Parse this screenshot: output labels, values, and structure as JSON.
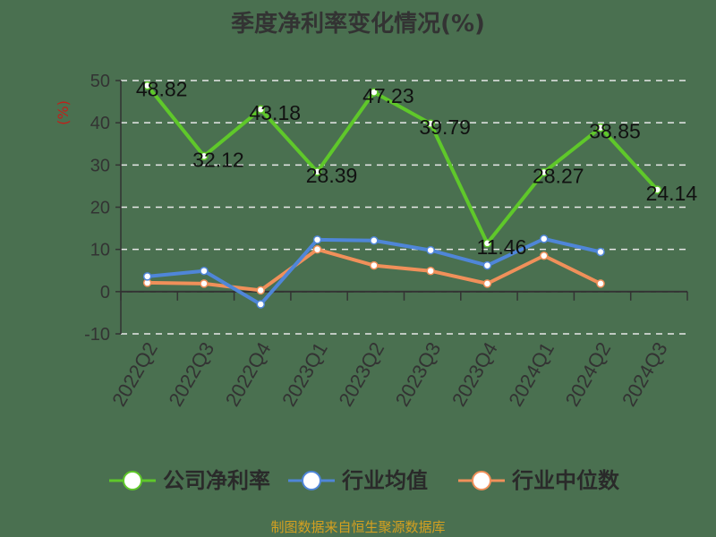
{
  "chart_data": {
    "type": "line",
    "title": "季度净利率变化情况(%)",
    "ylabel": "(%)",
    "xlabel": "",
    "ylim": [
      -10,
      50
    ],
    "yticks": [
      50,
      40,
      30,
      20,
      10,
      0,
      -10
    ],
    "grid": true,
    "legend_placement": "bottom",
    "categories": [
      "2022Q2",
      "2022Q3",
      "2022Q4",
      "2023Q1",
      "2023Q2",
      "2023Q3",
      "2023Q4",
      "2024Q1",
      "2024Q2",
      "2024Q3"
    ],
    "series": [
      {
        "name": "公司净利率",
        "color": "#5fc82a",
        "labeled": true,
        "values": [
          48.82,
          32.12,
          43.18,
          28.39,
          47.23,
          39.79,
          11.46,
          28.27,
          38.85,
          24.14
        ]
      },
      {
        "name": "行业均值",
        "color": "#4f86d8",
        "labeled": false,
        "values": [
          3.6,
          4.9,
          -3.0,
          12.3,
          12.1,
          9.8,
          6.2,
          12.5,
          9.4,
          null
        ]
      },
      {
        "name": "行业中位数",
        "color": "#f0905a",
        "labeled": false,
        "values": [
          2.1,
          1.9,
          0.3,
          10.0,
          6.2,
          4.9,
          1.9,
          8.5,
          1.9,
          null
        ]
      }
    ]
  },
  "source": "制图数据来自恒生聚源数据库"
}
